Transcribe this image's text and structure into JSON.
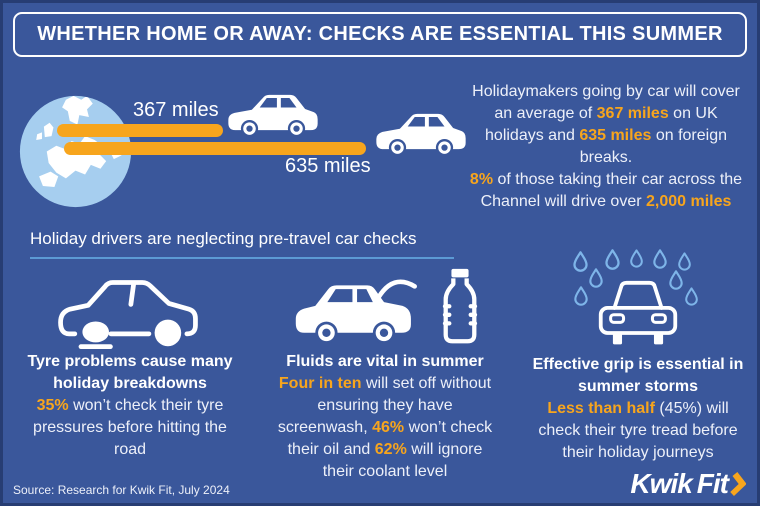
{
  "colors": {
    "background": "#3A579B",
    "accent": "#F7A51D",
    "globe_blue": "#A6CEEF",
    "raindrop_blue": "#7EB5E9",
    "underline_blue": "#5C9AD4",
    "heading_text": "#FFFFFF",
    "body_text": "#EDF0F9"
  },
  "banner": {
    "title": "WHETHER HOME OR AWAY: CHECKS ARE ESSENTIAL THIS SUMMER"
  },
  "travel": {
    "bar1_label": "367 miles",
    "bar2_label": "635 miles",
    "intro": [
      {
        "t": "Holidaymakers going by car will cover"
      },
      {
        "br": true
      },
      {
        "t": "an average of "
      },
      {
        "t": "367 miles",
        "hl": true
      },
      {
        "t": " on UK"
      },
      {
        "br": true
      },
      {
        "t": "holidays and "
      },
      {
        "t": "635 miles",
        "hl": true
      },
      {
        "t": " on foreign"
      },
      {
        "br": true
      },
      {
        "t": "breaks."
      },
      {
        "br": true
      },
      {
        "t": "8%",
        "hl": true
      },
      {
        "t": " of those taking their car across the"
      },
      {
        "br": true
      },
      {
        "t": "Channel will drive over "
      },
      {
        "t": "2,000 miles",
        "hl": true
      }
    ]
  },
  "section2": {
    "heading": "Holiday drivers are neglecting pre-travel car checks"
  },
  "columns": [
    {
      "heading": [
        {
          "t": "Tyre problems cause many"
        },
        {
          "br": true
        },
        {
          "t": "holiday breakdowns"
        }
      ],
      "body": [
        {
          "t": "35%",
          "hl": true
        },
        {
          "t": " won’t check their tyre"
        },
        {
          "br": true
        },
        {
          "t": "pressures before hitting the"
        },
        {
          "br": true
        },
        {
          "t": "road"
        }
      ]
    },
    {
      "heading": [
        {
          "t": "Fluids are vital in summer"
        }
      ],
      "body": [
        {
          "t": "Four in ten",
          "hl": true
        },
        {
          "t": " will set off without"
        },
        {
          "br": true
        },
        {
          "t": "ensuring they have"
        },
        {
          "br": true
        },
        {
          "t": "screenwash, "
        },
        {
          "t": "46%",
          "hl": true
        },
        {
          "t": " won’t check"
        },
        {
          "br": true
        },
        {
          "t": "their oil and "
        },
        {
          "t": "62%",
          "hl": true
        },
        {
          "t": " will ignore"
        },
        {
          "br": true
        },
        {
          "t": "their coolant level"
        }
      ]
    },
    {
      "heading": [
        {
          "t": "Effective grip is essential in"
        },
        {
          "br": true
        },
        {
          "t": "summer storms"
        }
      ],
      "body": [
        {
          "t": "Less than half",
          "hl": true
        },
        {
          "t": " (45%) will"
        },
        {
          "br": true
        },
        {
          "t": "check their tyre tread before"
        },
        {
          "br": true
        },
        {
          "t": "their holiday journeys"
        }
      ]
    }
  ],
  "footer": {
    "source": "Source: Research for Kwik Fit, July 2024",
    "logo_kwik": "Kwik",
    "logo_fit": "Fit"
  }
}
